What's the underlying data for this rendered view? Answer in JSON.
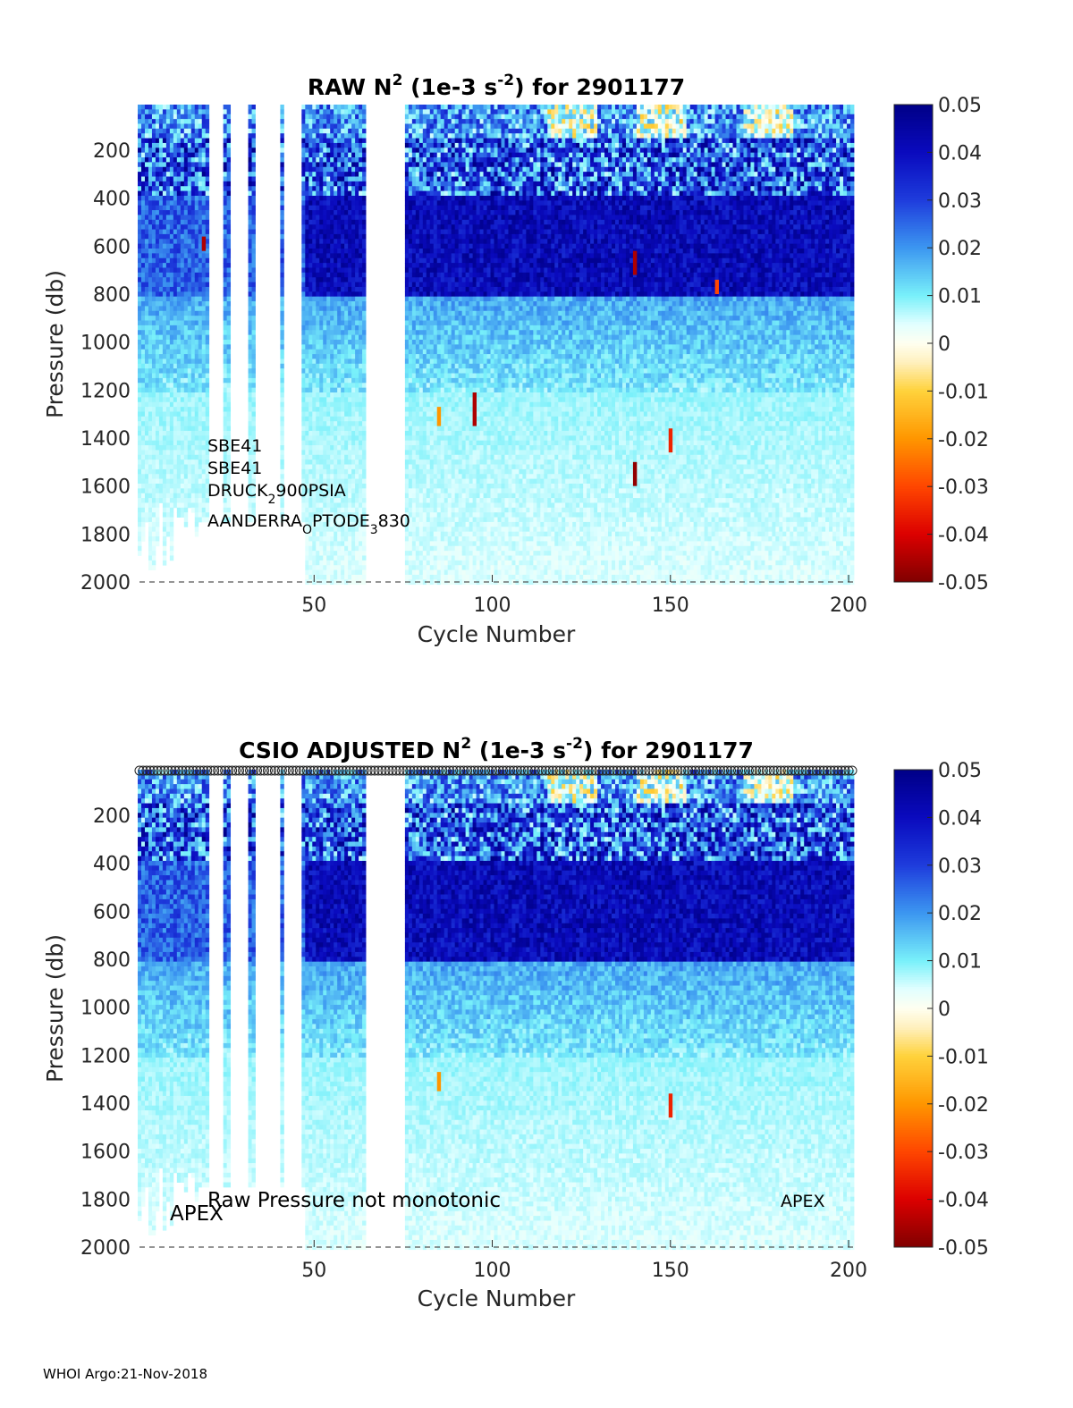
{
  "footer": "WHOI Argo:21-Nov-2018",
  "chart_data": [
    {
      "type": "heatmap",
      "title": {
        "prefix": "RAW N",
        "sup1": "2",
        "mid": " (1e-3 s",
        "sup2": "-2",
        "suffix": ") for 2901177"
      },
      "xlabel": "Cycle Number",
      "ylabel": "Pressure (db)",
      "xlim": [
        1,
        202
      ],
      "ylim": [
        2000,
        10
      ],
      "xticks": [
        50,
        100,
        150,
        200
      ],
      "yticks": [
        200,
        400,
        600,
        800,
        1000,
        1200,
        1400,
        1600,
        1800,
        2000
      ],
      "colorbar": {
        "ticks": [
          "0.05",
          "0.04",
          "0.03",
          "0.02",
          "0.01",
          "0",
          "-0.01",
          "-0.02",
          "-0.03",
          "-0.04",
          "-0.05"
        ],
        "clim": [
          -0.05,
          0.05
        ],
        "colormap": "jet-white-center"
      },
      "annotations": [
        {
          "text": "SBE41"
        },
        {
          "text": "SBE41"
        },
        {
          "text": "DRUCK",
          "sub": "2",
          "rest": "900PSIA"
        },
        {
          "text": "AANDERRA",
          "sub": "O",
          "rest": "PTODE",
          "sub2": "3",
          "rest2": "830"
        }
      ],
      "negative_spikes": [
        {
          "x": 85,
          "y0": 1270,
          "y1": 1350,
          "value": -0.02
        },
        {
          "x": 95,
          "y0": 1210,
          "y1": 1350,
          "value": -0.045
        },
        {
          "x": 140,
          "y0": 1500,
          "y1": 1600,
          "value": -0.048
        },
        {
          "x": 150,
          "y0": 1360,
          "y1": 1460,
          "value": -0.035
        },
        {
          "x": 140,
          "y0": 620,
          "y1": 720,
          "value": -0.045
        },
        {
          "x": 163,
          "y0": 740,
          "y1": 800,
          "value": -0.03
        },
        {
          "x": 19,
          "y0": 560,
          "y1": 620,
          "value": -0.045
        }
      ],
      "gaps": [
        [
          21,
          24
        ],
        [
          27,
          31
        ],
        [
          34,
          40
        ],
        [
          42,
          44
        ],
        [
          45,
          46
        ],
        [
          65,
          75
        ]
      ]
    },
    {
      "type": "heatmap",
      "title": {
        "prefix": "CSIO  ADJUSTED N",
        "sup1": "2",
        "mid": " (1e-3 s",
        "sup2": "-2",
        "suffix": ") for 2901177"
      },
      "xlabel": "Cycle Number",
      "ylabel": "Pressure (db)",
      "xlim": [
        1,
        202
      ],
      "ylim": [
        2000,
        10
      ],
      "xticks": [
        50,
        100,
        150,
        200
      ],
      "yticks": [
        200,
        400,
        600,
        800,
        1000,
        1200,
        1400,
        1600,
        1800,
        2000
      ],
      "colorbar": {
        "ticks": [
          "0.05",
          "0.04",
          "0.03",
          "0.02",
          "0.01",
          "0",
          "-0.01",
          "-0.02",
          "-0.03",
          "-0.04",
          "-0.05"
        ],
        "clim": [
          -0.05,
          0.05
        ],
        "colormap": "jet-white-center"
      },
      "annotations": [
        {
          "text": "APEX"
        },
        {
          "text": "Raw Pressure not monotonic"
        },
        {
          "text": "APEX"
        }
      ],
      "top_markers": "open circles at every cycle along the top axis",
      "negative_spikes": [
        {
          "x": 85,
          "y0": 1270,
          "y1": 1350,
          "value": -0.02
        },
        {
          "x": 150,
          "y0": 1360,
          "y1": 1460,
          "value": -0.035
        }
      ],
      "gaps": [
        [
          21,
          24
        ],
        [
          27,
          31
        ],
        [
          34,
          40
        ],
        [
          42,
          44
        ],
        [
          45,
          46
        ],
        [
          65,
          75
        ]
      ]
    }
  ]
}
